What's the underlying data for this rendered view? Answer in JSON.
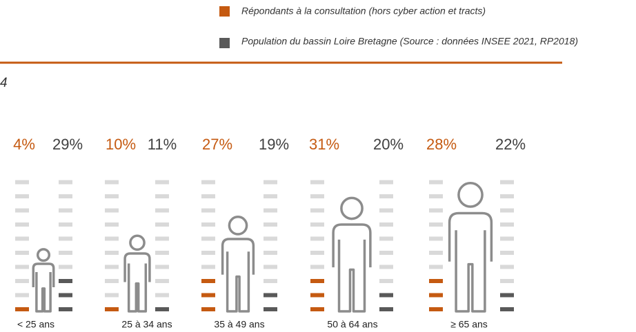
{
  "chart_data": {
    "type": "pictogram",
    "title": "4",
    "categories": [
      "< 25 ans",
      "25 à 34 ans",
      "35 à 49 ans",
      "50 à 64 ans",
      "≥ 65 ans"
    ],
    "series": [
      {
        "name": "Répondants à la consultation (hors cyber action et tracts)",
        "color": "#c55a11",
        "values": [
          4,
          10,
          27,
          31,
          28
        ],
        "value_labels": [
          "4%",
          "10%",
          "27%",
          "31%",
          "28%"
        ]
      },
      {
        "name": "Population du bassin Loire Bretagne (Source : données INSEE 2021, RP2018)",
        "color": "#595959",
        "values": [
          29,
          11,
          19,
          20,
          22
        ],
        "value_labels": [
          "29%",
          "11%",
          "19%",
          "20%",
          "22%"
        ]
      }
    ]
  }
}
